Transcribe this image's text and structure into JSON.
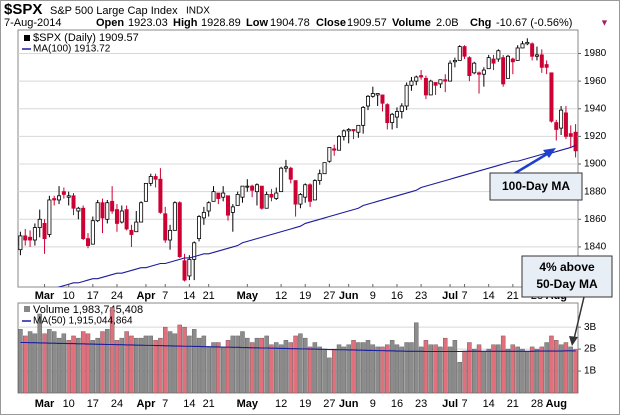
{
  "header": {
    "symbol": "$SPX",
    "name": "S&P 500 Large Cap Index",
    "exchange": "INDX",
    "date": "7-Aug-2014",
    "quote": [
      [
        "Open",
        "1923.03"
      ],
      [
        "High",
        "1928.89"
      ],
      [
        "Low",
        "1904.78"
      ],
      [
        "Close",
        "1909.57"
      ],
      [
        "Volume",
        "2.0B"
      ],
      [
        "Chg",
        "-10.67 (-0.56%)"
      ]
    ],
    "change_arrow": "▼"
  },
  "chart_data": [
    {
      "type": "candlestick",
      "legend_price": "$SPX (Daily) 1909.57",
      "categories": [
        null,
        null,
        null,
        null,
        null,
        "Mar",
        null,
        null,
        null,
        null,
        "10",
        null,
        null,
        null,
        null,
        "17",
        null,
        null,
        null,
        null,
        "24",
        null,
        null,
        null,
        null,
        null,
        "Apr",
        null,
        null,
        null,
        "7",
        null,
        null,
        null,
        null,
        "14",
        null,
        null,
        null,
        "21",
        null,
        null,
        null,
        null,
        null,
        null,
        null,
        "May",
        null,
        null,
        null,
        null,
        null,
        null,
        "12",
        null,
        null,
        null,
        null,
        "19",
        null,
        null,
        null,
        null,
        "27",
        null,
        null,
        null,
        "Jun",
        null,
        null,
        null,
        null,
        "9",
        null,
        null,
        null,
        null,
        "16",
        null,
        null,
        null,
        null,
        "23",
        null,
        null,
        null,
        null,
        null,
        "Jul",
        null,
        null,
        "7",
        null,
        null,
        null,
        null,
        "14",
        null,
        null,
        null,
        null,
        "21",
        null,
        null,
        null,
        null,
        "28",
        null,
        null,
        null,
        "Aug",
        null,
        null,
        null,
        null
      ],
      "open": [
        1838,
        1848,
        1847,
        1845,
        1854,
        1857,
        1849,
        1875,
        1874,
        1880,
        1876,
        1877,
        1866,
        1868,
        1846,
        1842,
        1859,
        1872,
        1860,
        1873,
        1867,
        1858,
        1867,
        1852,
        1851,
        1858,
        1873,
        1886,
        1891,
        1889,
        1864,
        1845,
        1852,
        1872,
        1830,
        1819,
        1831,
        1846,
        1861,
        1866,
        1873,
        1879,
        1876,
        1877,
        1865,
        1870,
        1876,
        1884,
        1884,
        1880,
        1884,
        1868,
        1878,
        1875,
        1880,
        1897,
        1897,
        1888,
        1871,
        1876,
        1885,
        1874,
        1888,
        1893,
        1902,
        1911,
        1910,
        1920,
        1924,
        1925,
        1923,
        1928,
        1942,
        1949,
        1950,
        1950,
        1943,
        1930,
        1934,
        1938,
        1942,
        1957,
        1960,
        1964,
        1962,
        1950,
        1959,
        1958,
        1961,
        1960,
        1974,
        1975,
        1985,
        1977,
        1966,
        1966,
        1965,
        1969,
        1976,
        1976,
        1977,
        1962,
        1976,
        1975,
        1984,
        1987,
        1987,
        1978,
        1979,
        1972,
        1966,
        1930,
        1926,
        1937,
        1922,
        1923.03
      ],
      "high": [
        1851,
        1853,
        1852,
        1857,
        1867,
        1860,
        1877,
        1877,
        1884,
        1883,
        1880,
        1879,
        1869,
        1870,
        1850,
        1862,
        1874,
        1875,
        1874,
        1884,
        1871,
        1870,
        1870,
        1856,
        1866,
        1873,
        1886,
        1893,
        1893,
        1897,
        1869,
        1856,
        1873,
        1873,
        1835,
        1834,
        1844,
        1863,
        1869,
        1873,
        1884,
        1879,
        1884,
        1877,
        1871,
        1880,
        1884,
        1889,
        1885,
        1886,
        1884,
        1880,
        1882,
        1883,
        1898,
        1903,
        1898,
        1888,
        1879,
        1886,
        1886,
        1889,
        1896,
        1901,
        1912,
        1914,
        1921,
        1925,
        1926,
        1925,
        1928,
        1942,
        1950,
        1956,
        1951,
        1950,
        1944,
        1937,
        1941,
        1944,
        1959,
        1963,
        1964,
        1968,
        1964,
        1961,
        1959,
        1961,
        1965,
        1975,
        1977,
        1986,
        1986,
        1978,
        1974,
        1967,
        1970,
        1979,
        1979,
        1983,
        1979,
        1979,
        1977,
        1986,
        1989,
        1991,
        1988,
        1985,
        1983,
        1975,
        1966,
        1932,
        1942,
        1942,
        1928,
        1928.89
      ],
      "low": [
        1834,
        1841,
        1840,
        1841,
        1847,
        1835,
        1847,
        1870,
        1871,
        1875,
        1870,
        1863,
        1860,
        1845,
        1839,
        1842,
        1858,
        1850,
        1857,
        1864,
        1851,
        1857,
        1852,
        1840,
        1851,
        1858,
        1873,
        1884,
        1883,
        1864,
        1843,
        1838,
        1852,
        1832,
        1815,
        1816,
        1816,
        1844,
        1856,
        1862,
        1873,
        1871,
        1873,
        1859,
        1851,
        1870,
        1872,
        1880,
        1876,
        1870,
        1867,
        1868,
        1873,
        1874,
        1880,
        1894,
        1886,
        1862,
        1868,
        1872,
        1869,
        1874,
        1885,
        1893,
        1901,
        1906,
        1910,
        1917,
        1915,
        1918,
        1919,
        1922,
        1939,
        1948,
        1942,
        1938,
        1925,
        1925,
        1926,
        1933,
        1939,
        1953,
        1957,
        1961,
        1947,
        1950,
        1950,
        1955,
        1952,
        1960,
        1970,
        1975,
        1976,
        1960,
        1965,
        1951,
        1956,
        1969,
        1968,
        1974,
        1956,
        1962,
        1965,
        1975,
        1984,
        1986,
        1975,
        1975,
        1966,
        1965,
        1930,
        1917,
        1921,
        1918,
        1912,
        1904.78
      ],
      "close": [
        1848,
        1845,
        1845,
        1854,
        1860,
        1846,
        1874,
        1874,
        1877,
        1878,
        1877,
        1868,
        1868,
        1846,
        1841,
        1859,
        1872,
        1861,
        1872,
        1866,
        1857,
        1866,
        1853,
        1849,
        1858,
        1872,
        1886,
        1891,
        1889,
        1865,
        1845,
        1852,
        1872,
        1833,
        1816,
        1831,
        1843,
        1862,
        1865,
        1872,
        1880,
        1875,
        1879,
        1863,
        1869,
        1878,
        1884,
        1884,
        1881,
        1885,
        1868,
        1878,
        1876,
        1879,
        1897,
        1898,
        1889,
        1871,
        1878,
        1885,
        1873,
        1888,
        1893,
        1901,
        1912,
        1910,
        1920,
        1924,
        1925,
        1924,
        1928,
        1941,
        1949,
        1951,
        1951,
        1944,
        1930,
        1936,
        1938,
        1942,
        1957,
        1960,
        1963,
        1963,
        1950,
        1960,
        1957,
        1961,
        1960,
        1973,
        1975,
        1985,
        1978,
        1964,
        1973,
        1965,
        1968,
        1977,
        1973,
        1982,
        1958,
        1978,
        1974,
        1984,
        1987,
        1988,
        1978,
        1979,
        1970,
        1970,
        1931,
        1925,
        1939,
        1920,
        1920,
        1909.57
      ],
      "up_color": "#000000",
      "down_color": "#cc0033",
      "series": [
        {
          "name": "MA(100) 1913.72",
          "color": "#1c1c9c",
          "values": [
            1805,
            1806,
            1807,
            1807,
            1808,
            1809,
            1810,
            1810,
            1811,
            1812,
            1813,
            1814,
            1814,
            1815,
            1816,
            1817,
            1817,
            1818,
            1819,
            1820,
            1821,
            1821,
            1822,
            1823,
            1824,
            1825,
            1825,
            1826,
            1827,
            1828,
            1828,
            1829,
            1830,
            1831,
            1832,
            1832,
            1833,
            1834,
            1835,
            1835,
            1836,
            1837,
            1838,
            1839,
            1840,
            1841,
            1843,
            1844,
            1845,
            1846,
            1847,
            1848,
            1849,
            1850,
            1851,
            1852,
            1853,
            1854,
            1855,
            1857,
            1858,
            1859,
            1860,
            1861,
            1862,
            1863,
            1864,
            1865,
            1866,
            1867,
            1868,
            1870,
            1871,
            1872,
            1873,
            1874,
            1875,
            1876,
            1877,
            1878,
            1879,
            1880,
            1881,
            1883,
            1884,
            1885,
            1886,
            1887,
            1888,
            1889,
            1890,
            1891,
            1892,
            1893,
            1894,
            1895,
            1896,
            1897,
            1898,
            1899,
            1900,
            1901,
            1902,
            1902,
            1903,
            1904,
            1905,
            1906,
            1907,
            1908,
            1908,
            1909,
            1910,
            1911,
            1912,
            1913.72
          ]
        }
      ],
      "ylim": [
        1811,
        1997
      ],
      "yticks": [
        1840,
        1860,
        1880,
        1900,
        1920,
        1940,
        1960,
        1980
      ],
      "grid": true,
      "annotations": [
        "100-Day MA",
        "4% above",
        "50-Day MA"
      ]
    },
    {
      "type": "bar",
      "legend": "Volume 1,983,745,408",
      "values": [
        2.9,
        2.6,
        2.8,
        2.7,
        3.6,
        2.7,
        2.9,
        2.8,
        2.5,
        2.7,
        2.4,
        2.6,
        2.5,
        2.8,
        2.7,
        2.4,
        2.5,
        2.8,
        2.9,
        3.9,
        2.4,
        2.5,
        2.8,
        2.6,
        2.5,
        2.5,
        2.6,
        2.6,
        2.4,
        2.5,
        3.0,
        2.8,
        2.7,
        3.1,
        3.0,
        2.6,
        2.9,
        2.5,
        2.6,
        2.1,
        2.3,
        2.3,
        2.1,
        2.4,
        2.6,
        2.6,
        2.8,
        2.5,
        2.3,
        2.5,
        2.5,
        2.6,
        2.2,
        2.3,
        2.2,
        2.4,
        2.3,
        2.6,
        2.7,
        2.5,
        2.1,
        2.3,
        2.1,
        2.0,
        1.6,
        2.0,
        2.2,
        2.1,
        2.2,
        2.4,
        2.3,
        2.3,
        2.4,
        2.2,
        2.1,
        2.1,
        2.2,
        2.4,
        2.2,
        2.1,
        2.3,
        2.3,
        3.2,
        2.1,
        2.4,
        2.2,
        2.2,
        2.1,
        2.5,
        2.1,
        2.4,
        1.4,
        1.9,
        2.3,
        2.0,
        2.2,
        1.9,
        2.0,
        2.2,
        2.2,
        2.6,
        2.0,
        2.2,
        2.1,
        2.0,
        1.9,
        2.1,
        2.0,
        2.1,
        2.3,
        2.6,
        2.4,
        2.2,
        2.3,
        2.1,
        1.983745408
      ],
      "up_color": "#8c8c8c",
      "down_color": "#e0707c",
      "series": [
        {
          "name": "MA(50) 1,915,044,864",
          "color": "#1c1c9c",
          "values": [
            2.3,
            2.3,
            2.29,
            2.29,
            2.28,
            2.28,
            2.27,
            2.27,
            2.26,
            2.26,
            2.25,
            2.25,
            2.24,
            2.24,
            2.23,
            2.23,
            2.22,
            2.22,
            2.21,
            2.21,
            2.2,
            2.2,
            2.19,
            2.19,
            2.18,
            2.18,
            2.17,
            2.17,
            2.16,
            2.16,
            2.15,
            2.15,
            2.14,
            2.14,
            2.13,
            2.13,
            2.12,
            2.12,
            2.11,
            2.11,
            2.1,
            2.1,
            2.09,
            2.09,
            2.08,
            2.08,
            2.07,
            2.07,
            2.06,
            2.06,
            2.05,
            2.05,
            2.04,
            2.04,
            2.03,
            2.03,
            2.02,
            2.02,
            2.01,
            2.01,
            2.0,
            2.0,
            1.99,
            1.99,
            1.98,
            1.98,
            1.97,
            1.97,
            1.96,
            1.96,
            1.95,
            1.95,
            1.94,
            1.94,
            1.93,
            1.93,
            1.92,
            1.92,
            1.91,
            1.91,
            1.9,
            1.9,
            1.9,
            1.9,
            1.89,
            1.89,
            1.89,
            1.89,
            1.89,
            1.89,
            1.89,
            1.89,
            1.9,
            1.9,
            1.9,
            1.9,
            1.9,
            1.9,
            1.9,
            1.9,
            1.9,
            1.9,
            1.9,
            1.9,
            1.9,
            1.9,
            1.9,
            1.91,
            1.91,
            1.91,
            1.91,
            1.91,
            1.91,
            1.92,
            1.92,
            1.915044864
          ]
        }
      ],
      "ylim": [
        0,
        4.1
      ],
      "yticks": [
        {
          "value": 1,
          "label": "1B"
        },
        {
          "value": 2,
          "label": "2B"
        },
        {
          "value": 3,
          "label": "3B"
        }
      ],
      "grid": true
    }
  ]
}
